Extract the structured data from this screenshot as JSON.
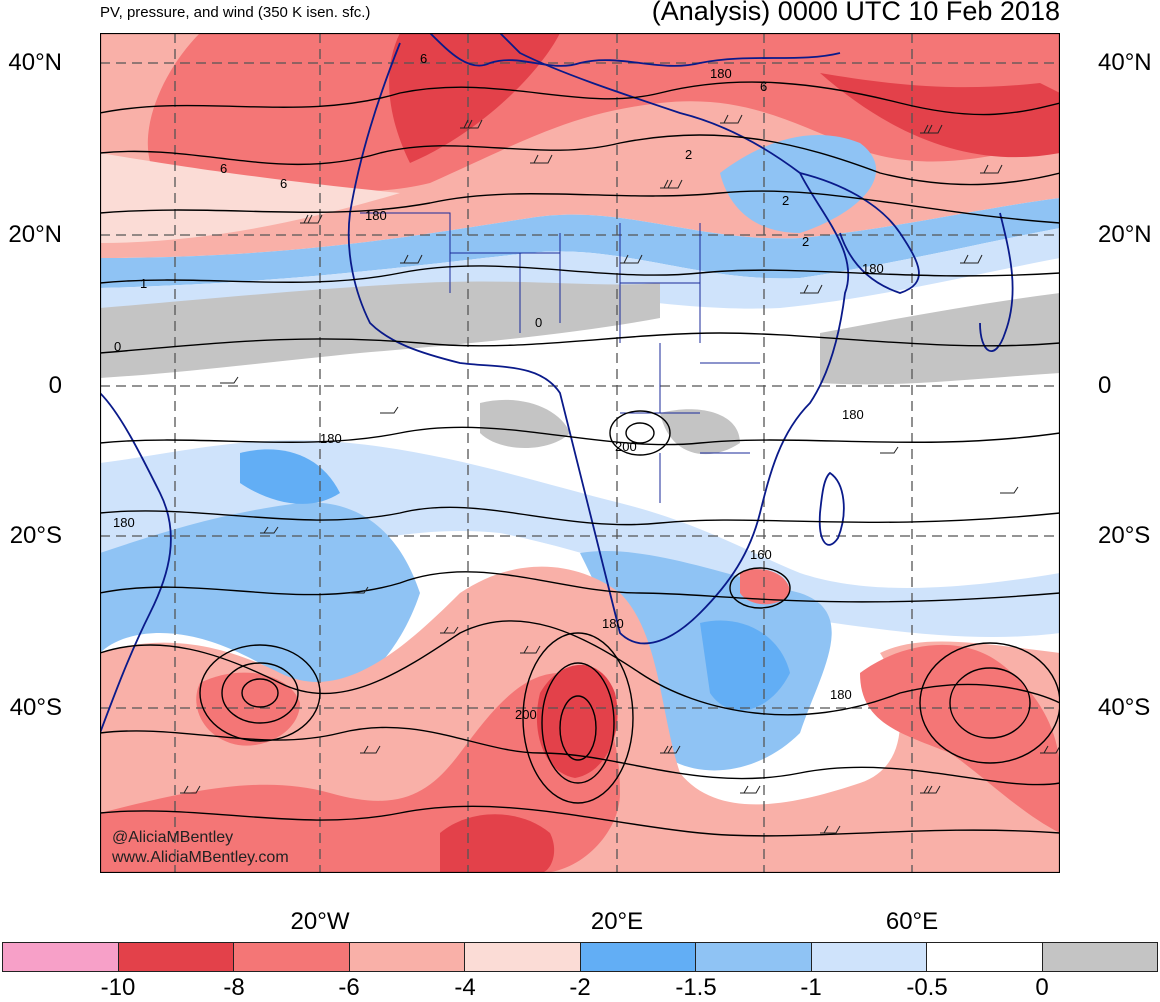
{
  "header": {
    "left_title": "PV, pressure, and wind (350 K isen. sfc.)",
    "right_title": "(Analysis) 0000 UTC 10 Feb 2018"
  },
  "axes": {
    "lat_labels": [
      "40°N",
      "20°N",
      "0",
      "20°S",
      "40°S"
    ],
    "lon_labels": [
      "20°W",
      "20°E",
      "60°E"
    ]
  },
  "contour_labels": [
    "6",
    "6",
    "6",
    "6",
    "180",
    "180",
    "2",
    "2",
    "2",
    "180",
    "1",
    "0",
    "0",
    "180",
    "180",
    "200",
    "180",
    "160",
    "180",
    "200",
    "180",
    "180"
  ],
  "credit": {
    "handle": "@AliciaMBentley",
    "site": "www.AliciaMBentley.com"
  },
  "colorbar": {
    "colors": [
      "#f7a0c8",
      "#e3414a",
      "#f47676",
      "#f9b0a8",
      "#fbdcd6",
      "#62aef5",
      "#8fc3f4",
      "#cfe3fb",
      "#ffffff",
      "#c4c4c4"
    ],
    "labels": [
      "-10",
      "-8",
      "-6",
      "-4",
      "-2",
      "-1.5",
      "-1",
      "-0.5",
      "0"
    ]
  }
}
